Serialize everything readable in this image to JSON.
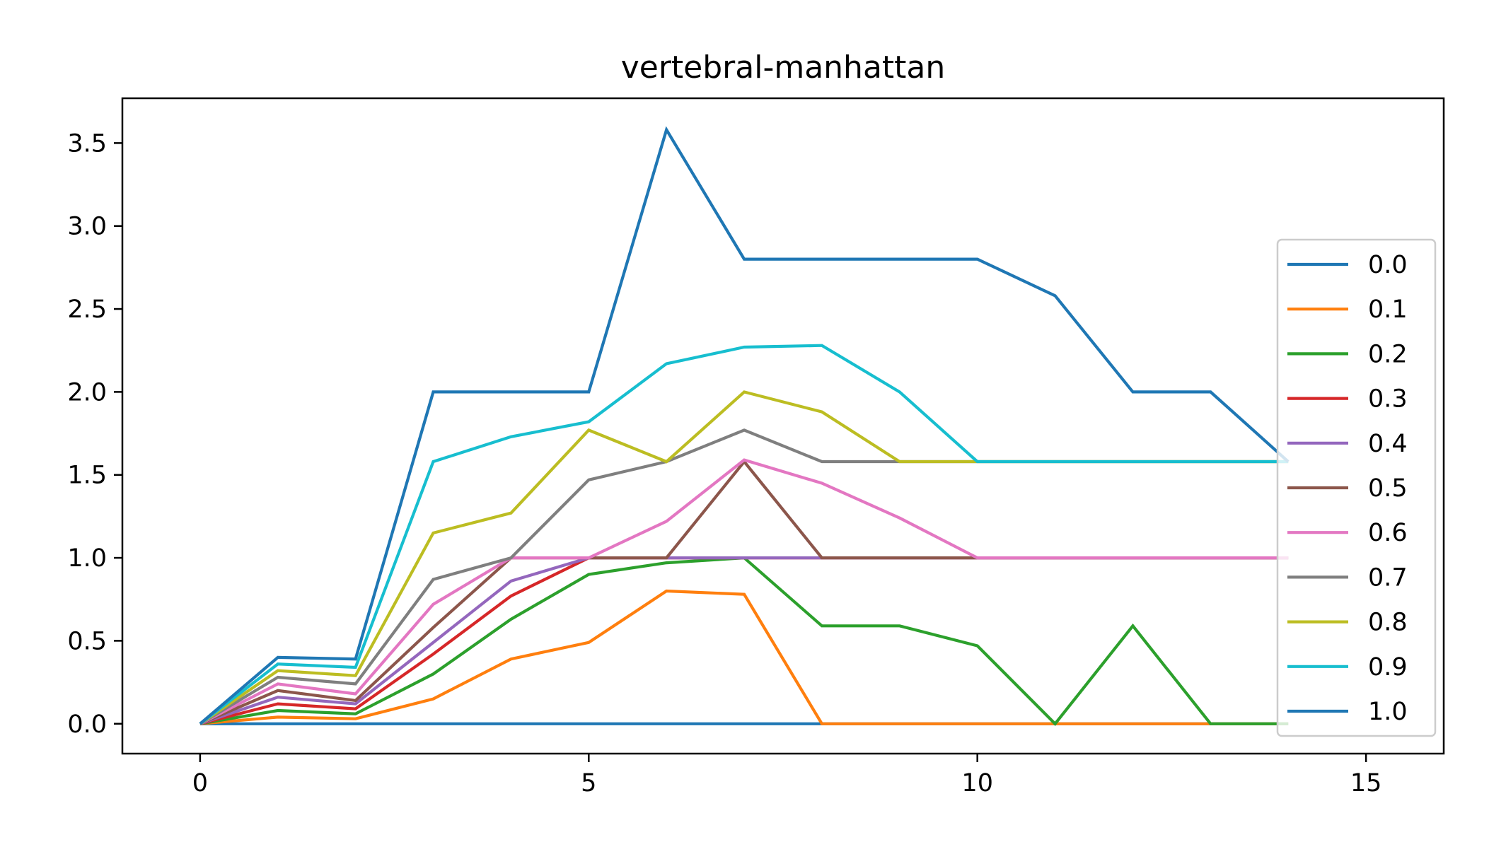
{
  "chart_data": {
    "type": "line",
    "title": "vertebral-manhattan",
    "xlabel": "",
    "ylabel": "",
    "xlim": [
      -1,
      16
    ],
    "ylim": [
      -0.18,
      3.77
    ],
    "xticks": [
      0,
      5,
      10,
      15
    ],
    "yticks": [
      0.0,
      0.5,
      1.0,
      1.5,
      2.0,
      2.5,
      3.0,
      3.5
    ],
    "xtick_labels": [
      "0",
      "5",
      "10",
      "15"
    ],
    "ytick_labels": [
      "0.0",
      "0.5",
      "1.0",
      "1.5",
      "2.0",
      "2.5",
      "3.0",
      "3.5"
    ],
    "grid": false,
    "legend_position": "right",
    "x": [
      0,
      1,
      2,
      3,
      4,
      5,
      6,
      7,
      8,
      9,
      10,
      11,
      12,
      13,
      14
    ],
    "series": [
      {
        "name": "0.0",
        "color": "#1f77b4",
        "values": [
          0,
          0,
          0,
          0,
          0,
          0,
          0,
          0,
          0,
          0,
          0,
          0,
          0,
          0,
          0
        ]
      },
      {
        "name": "0.1",
        "color": "#ff7f0e",
        "values": [
          0,
          0.04,
          0.03,
          0.15,
          0.39,
          0.49,
          0.8,
          0.78,
          0,
          0,
          0,
          0,
          0,
          0,
          0
        ]
      },
      {
        "name": "0.2",
        "color": "#2ca02c",
        "values": [
          0,
          0.08,
          0.06,
          0.3,
          0.63,
          0.9,
          0.97,
          1.0,
          0.59,
          0.59,
          0.47,
          0,
          0.59,
          0,
          0
        ]
      },
      {
        "name": "0.3",
        "color": "#d62728",
        "values": [
          0,
          0.12,
          0.09,
          0.42,
          0.77,
          1.0,
          1.0,
          1.0,
          1.0,
          1.0,
          1.0,
          1.0,
          1.0,
          1.0,
          1.0
        ]
      },
      {
        "name": "0.4",
        "color": "#9467bd",
        "values": [
          0,
          0.16,
          0.12,
          0.49,
          0.86,
          1.0,
          1.0,
          1.0,
          1.0,
          1.0,
          1.0,
          1.0,
          1.0,
          1.0,
          1.0
        ]
      },
      {
        "name": "0.5",
        "color": "#8c564b",
        "values": [
          0,
          0.2,
          0.14,
          0.58,
          1.0,
          1.0,
          1.0,
          1.58,
          1.0,
          1.0,
          1.0,
          1.0,
          1.0,
          1.0,
          1.0
        ]
      },
      {
        "name": "0.6",
        "color": "#e377c2",
        "values": [
          0,
          0.24,
          0.18,
          0.72,
          1.0,
          1.0,
          1.22,
          1.59,
          1.45,
          1.24,
          1.0,
          1.0,
          1.0,
          1.0,
          1.0
        ]
      },
      {
        "name": "0.7",
        "color": "#7f7f7f",
        "values": [
          0,
          0.28,
          0.24,
          0.87,
          1.0,
          1.47,
          1.58,
          1.77,
          1.58,
          1.58,
          1.58,
          1.58,
          1.58,
          1.58,
          1.58
        ]
      },
      {
        "name": "0.8",
        "color": "#bcbd22",
        "values": [
          0,
          0.32,
          0.29,
          1.15,
          1.27,
          1.77,
          1.58,
          2.0,
          1.88,
          1.58,
          1.58,
          1.58,
          1.58,
          1.58,
          1.58
        ]
      },
      {
        "name": "0.9",
        "color": "#17becf",
        "values": [
          0,
          0.36,
          0.34,
          1.58,
          1.73,
          1.82,
          2.17,
          2.27,
          2.28,
          2.0,
          1.58,
          1.58,
          1.58,
          1.58,
          1.58
        ]
      },
      {
        "name": "1.0",
        "color": "#1f77b4",
        "values": [
          0,
          0.4,
          0.39,
          2.0,
          2.0,
          2.0,
          3.58,
          2.8,
          2.8,
          2.8,
          2.8,
          2.58,
          2.0,
          2.0,
          1.58
        ]
      }
    ]
  }
}
